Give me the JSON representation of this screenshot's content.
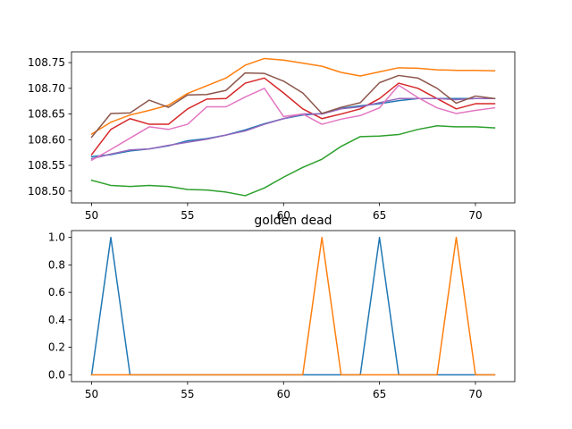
{
  "chart_data": [
    {
      "type": "line",
      "title": "",
      "xlabel": "",
      "ylabel": "",
      "xlim": [
        48.95,
        72.05
      ],
      "ylim": [
        108.477,
        108.771
      ],
      "xticks": [
        50,
        55,
        60,
        65,
        70
      ],
      "yticks": [
        108.5,
        108.55,
        108.6,
        108.65,
        108.7,
        108.75
      ],
      "x": [
        50,
        51,
        52,
        53,
        54,
        55,
        56,
        57,
        58,
        59,
        60,
        61,
        62,
        63,
        64,
        65,
        66,
        67,
        68,
        69,
        70,
        71
      ],
      "series": [
        {
          "color": "#1f77b4",
          "values": [
            108.567,
            108.571,
            108.578,
            108.582,
            108.588,
            108.598,
            108.602,
            108.609,
            108.619,
            108.631,
            108.641,
            108.648,
            108.651,
            108.661,
            108.666,
            108.67,
            108.676,
            108.68,
            108.68,
            108.68,
            108.68,
            108.68
          ]
        },
        {
          "color": "#ff7f0e",
          "values": [
            108.611,
            108.634,
            108.648,
            108.657,
            108.667,
            108.69,
            108.705,
            108.72,
            108.745,
            108.758,
            108.755,
            108.749,
            108.743,
            108.731,
            108.724,
            108.732,
            108.74,
            108.739,
            108.736,
            108.735,
            108.735,
            108.734
          ]
        },
        {
          "color": "#2ca02c",
          "values": [
            108.521,
            108.511,
            108.509,
            108.511,
            108.509,
            108.503,
            108.502,
            108.498,
            108.491,
            108.506,
            108.527,
            108.546,
            108.562,
            108.587,
            108.606,
            108.607,
            108.61,
            108.62,
            108.627,
            108.625,
            108.625,
            108.623
          ]
        },
        {
          "color": "#d62728",
          "values": [
            108.571,
            108.62,
            108.641,
            108.63,
            108.63,
            108.66,
            108.679,
            108.68,
            108.71,
            108.72,
            108.691,
            108.66,
            108.641,
            108.65,
            108.66,
            108.68,
            108.71,
            108.7,
            108.68,
            108.66,
            108.67,
            108.67
          ]
        },
        {
          "color": "#9467bd",
          "values": [
            108.563,
            108.572,
            108.58,
            108.582,
            108.589,
            108.595,
            108.601,
            108.609,
            108.617,
            108.63,
            108.641,
            108.65,
            108.65,
            108.66,
            108.664,
            108.672,
            108.68,
            108.68,
            108.68,
            108.678,
            108.68,
            108.68
          ]
        },
        {
          "color": "#8c564b",
          "values": [
            108.605,
            108.651,
            108.652,
            108.677,
            108.663,
            108.687,
            108.688,
            108.696,
            108.73,
            108.729,
            108.714,
            108.691,
            108.651,
            108.663,
            108.672,
            108.711,
            108.725,
            108.72,
            108.7,
            108.671,
            108.685,
            108.68
          ]
        },
        {
          "color": "#e377c2",
          "values": [
            108.56,
            108.581,
            108.603,
            108.625,
            108.62,
            108.63,
            108.664,
            108.664,
            108.683,
            108.7,
            108.645,
            108.65,
            108.63,
            108.64,
            108.647,
            108.662,
            108.706,
            108.682,
            108.662,
            108.651,
            108.657,
            108.662
          ]
        }
      ]
    },
    {
      "type": "line",
      "title": "golden dead",
      "xlabel": "",
      "ylabel": "",
      "xlim": [
        48.95,
        72.05
      ],
      "ylim": [
        -0.05,
        1.05
      ],
      "xticks": [
        50,
        55,
        60,
        65,
        70
      ],
      "yticks": [
        0.0,
        0.2,
        0.4,
        0.6,
        0.8,
        1.0
      ],
      "ytick_labels": [
        "0.0",
        "0.2",
        "0.4",
        "0.6",
        "0.8",
        "1.0"
      ],
      "x": [
        50,
        51,
        52,
        53,
        54,
        55,
        56,
        57,
        58,
        59,
        60,
        61,
        62,
        63,
        64,
        65,
        66,
        67,
        68,
        69,
        70,
        71
      ],
      "series": [
        {
          "color": "#1f77b4",
          "values": [
            0,
            1,
            0,
            0,
            0,
            0,
            0,
            0,
            0,
            0,
            0,
            0,
            0,
            0,
            0,
            1,
            0,
            0,
            0,
            0,
            0,
            0
          ]
        },
        {
          "color": "#ff7f0e",
          "values": [
            0,
            0,
            0,
            0,
            0,
            0,
            0,
            0,
            0,
            0,
            0,
            0,
            1,
            0,
            0,
            0,
            0,
            0,
            0,
            1,
            0,
            0
          ]
        }
      ]
    }
  ]
}
